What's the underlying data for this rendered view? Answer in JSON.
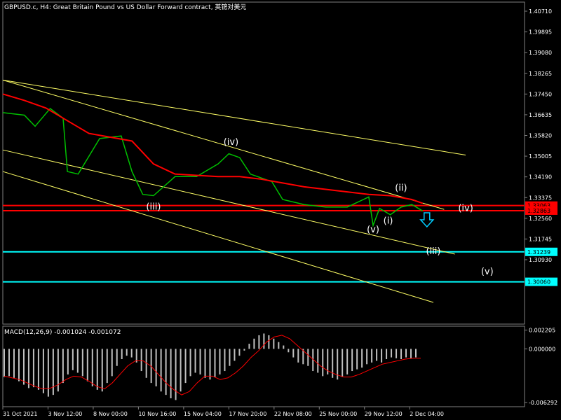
{
  "header": {
    "symbol_line": "GBPUSD.c, H4:  Great Britain Pound vs US Dollar Forward contract, 英镑对美元"
  },
  "macd_header": {
    "label": "MACD(12,26,9) -0.001024 -0.001072"
  },
  "colors": {
    "background": "#000000",
    "axis_text": "#ffffff",
    "price_line": "#00c000",
    "moving_average": "#ff0000",
    "trend_lines": "#ffff66",
    "resistance_lines": "#ff0000",
    "support_lines": "#00ffff",
    "wave_labels": "#ffffff",
    "arrow": "#00ccff",
    "macd_hist": "#c0c0c0",
    "macd_signal": "#ff0000"
  },
  "chart_data": {
    "type": "line",
    "symbol": "GBPUSD.c",
    "timeframe": "H4",
    "ylim": [
      1.3005,
      1.3775
    ],
    "price_ticks": [
      "1.40710",
      "1.39895",
      "1.39080",
      "1.38265",
      "1.37450",
      "1.36635",
      "1.35820",
      "1.35005",
      "1.34190",
      "1.33375",
      "1.32560",
      "1.31745",
      "1.30930"
    ],
    "price_tick_values": [
      1.4071,
      1.39895,
      1.3908,
      1.38265,
      1.3745,
      1.36635,
      1.3582,
      1.35005,
      1.3419,
      1.33375,
      1.3256,
      1.31745,
      1.3093
    ],
    "x_ticks": [
      "31 Oct 2021",
      "3 Nov 12:00",
      "8 Nov 00:00",
      "10 Nov 16:00",
      "15 Nov 04:00",
      "17 Nov 20:00",
      "22 Nov 08:00",
      "25 Nov 00:00",
      "29 Nov 12:00",
      "2 Dec 04:00"
    ],
    "x_tick_bars": [
      0,
      21,
      42,
      63,
      84,
      105,
      126,
      147,
      168,
      189
    ],
    "series": [
      {
        "x": [
          0,
          10,
          15,
          22,
          28,
          30,
          35,
          45,
          55,
          60,
          65,
          70,
          80,
          90,
          100,
          105,
          110,
          115,
          125,
          130,
          140,
          150,
          160,
          170,
          172,
          175,
          180,
          185,
          190,
          195
        ],
        "values": [
          1.3672,
          1.3662,
          1.3618,
          1.3688,
          1.365,
          1.344,
          1.343,
          1.357,
          1.358,
          1.344,
          1.335,
          1.3345,
          1.342,
          1.342,
          1.347,
          1.351,
          1.3495,
          1.343,
          1.34,
          1.333,
          1.331,
          1.33,
          1.33,
          1.334,
          1.3228,
          1.3295,
          1.327,
          1.33,
          1.331,
          1.3285
        ]
      },
      {
        "x": [
          0,
          10,
          20,
          30,
          40,
          50,
          60,
          70,
          80,
          90,
          100,
          110,
          120,
          130,
          140,
          150,
          160,
          170,
          180,
          190,
          195
        ],
        "values": [
          1.3745,
          1.372,
          1.369,
          1.364,
          1.359,
          1.3575,
          1.356,
          1.347,
          1.343,
          1.3425,
          1.342,
          1.342,
          1.341,
          1.3395,
          1.338,
          1.337,
          1.336,
          1.335,
          1.3345,
          1.333,
          1.3315
        ]
      }
    ],
    "trend_lines": [
      {
        "from": [
          0,
          1.38
        ],
        "to": [
          215,
          1.3505
        ]
      },
      {
        "from": [
          0,
          1.38
        ],
        "to": [
          205,
          1.3291
        ]
      },
      {
        "from": [
          0,
          1.3525
        ],
        "to": [
          210,
          1.3115
        ]
      },
      {
        "from": [
          0,
          1.344
        ],
        "to": [
          200,
          1.2925
        ]
      }
    ],
    "horizontal_levels": [
      {
        "value": 1.3306,
        "label": "1.33063",
        "color": "#ff0000"
      },
      {
        "value": 1.3286,
        "label": "1.32863",
        "color": "#ff0000"
      },
      {
        "value": 1.31239,
        "label": "1.31239",
        "color": "#00ffff"
      },
      {
        "value": 1.3006,
        "label": "1.30060",
        "color": "#00ffff"
      }
    ],
    "wave_labels": [
      {
        "text": "(iv)",
        "x": 106,
        "y": 1.3545
      },
      {
        "text": "(iii)",
        "x": 70,
        "y": 1.329
      },
      {
        "text": "(ii)",
        "x": 185,
        "y": 1.3365
      },
      {
        "text": "(i)",
        "x": 179,
        "y": 1.3235
      },
      {
        "text": "(v)",
        "x": 172,
        "y": 1.32
      },
      {
        "text": "(iv)",
        "x": 215,
        "y": 1.3285
      },
      {
        "text": "(iii)",
        "x": 200,
        "y": 1.3115
      },
      {
        "text": "(v)",
        "x": 225,
        "y": 1.3035
      }
    ],
    "arrow": {
      "x": 197,
      "y": 1.325,
      "direction": "down"
    },
    "macd": {
      "ylim": [
        -0.006292,
        0.00225
      ],
      "ticks": [
        "0.002205",
        "0.000000",
        "-0.006292"
      ],
      "tick_values": [
        0.002205,
        0.0,
        -0.006292
      ],
      "histogram": [
        -0.0033,
        -0.0032,
        -0.0034,
        -0.0038,
        -0.0042,
        -0.0046,
        -0.0045,
        -0.0048,
        -0.0052,
        -0.0056,
        -0.0054,
        -0.005,
        -0.004,
        -0.003,
        -0.0025,
        -0.0028,
        -0.0032,
        -0.0038,
        -0.0044,
        -0.0048,
        -0.005,
        -0.004,
        -0.0032,
        -0.002,
        -0.0012,
        -0.0008,
        -0.001,
        -0.0016,
        -0.0026,
        -0.0034,
        -0.004,
        -0.0044,
        -0.005,
        -0.0054,
        -0.0058,
        -0.006,
        -0.005,
        -0.004,
        -0.0032,
        -0.0028,
        -0.003,
        -0.0034,
        -0.0036,
        -0.0033,
        -0.003,
        -0.0026,
        -0.002,
        -0.0014,
        -0.0008,
        -0.0002,
        0.0006,
        0.0012,
        0.0016,
        0.0018,
        0.0016,
        0.0012,
        0.0008,
        0.0004,
        -0.0004,
        -0.001,
        -0.0016,
        -0.0018,
        -0.002,
        -0.0026,
        -0.0028,
        -0.0032,
        -0.003,
        -0.0034,
        -0.0036,
        -0.0033,
        -0.003,
        -0.0026,
        -0.0024,
        -0.0022,
        -0.0018,
        -0.0016,
        -0.0014,
        -0.0016,
        -0.0012,
        -0.001,
        -0.0011,
        -0.0012,
        -0.001,
        -0.0011,
        -0.001
      ],
      "signal": [
        -0.0032,
        -0.0034,
        -0.0036,
        -0.004,
        -0.0044,
        -0.0047,
        -0.0046,
        -0.0042,
        -0.0036,
        -0.0032,
        -0.0033,
        -0.0038,
        -0.0044,
        -0.0047,
        -0.004,
        -0.003,
        -0.002,
        -0.0014,
        -0.0014,
        -0.002,
        -0.003,
        -0.004,
        -0.0048,
        -0.0054,
        -0.005,
        -0.004,
        -0.0032,
        -0.0032,
        -0.0036,
        -0.0034,
        -0.0028,
        -0.002,
        -0.001,
        -0.0002,
        0.0008,
        0.0014,
        0.0016,
        0.0012,
        0.0004,
        -0.0004,
        -0.0012,
        -0.002,
        -0.0026,
        -0.003,
        -0.0033,
        -0.0033,
        -0.003,
        -0.0026,
        -0.0022,
        -0.0018,
        -0.0016,
        -0.0014,
        -0.0012,
        -0.0011,
        -0.0011
      ]
    }
  }
}
